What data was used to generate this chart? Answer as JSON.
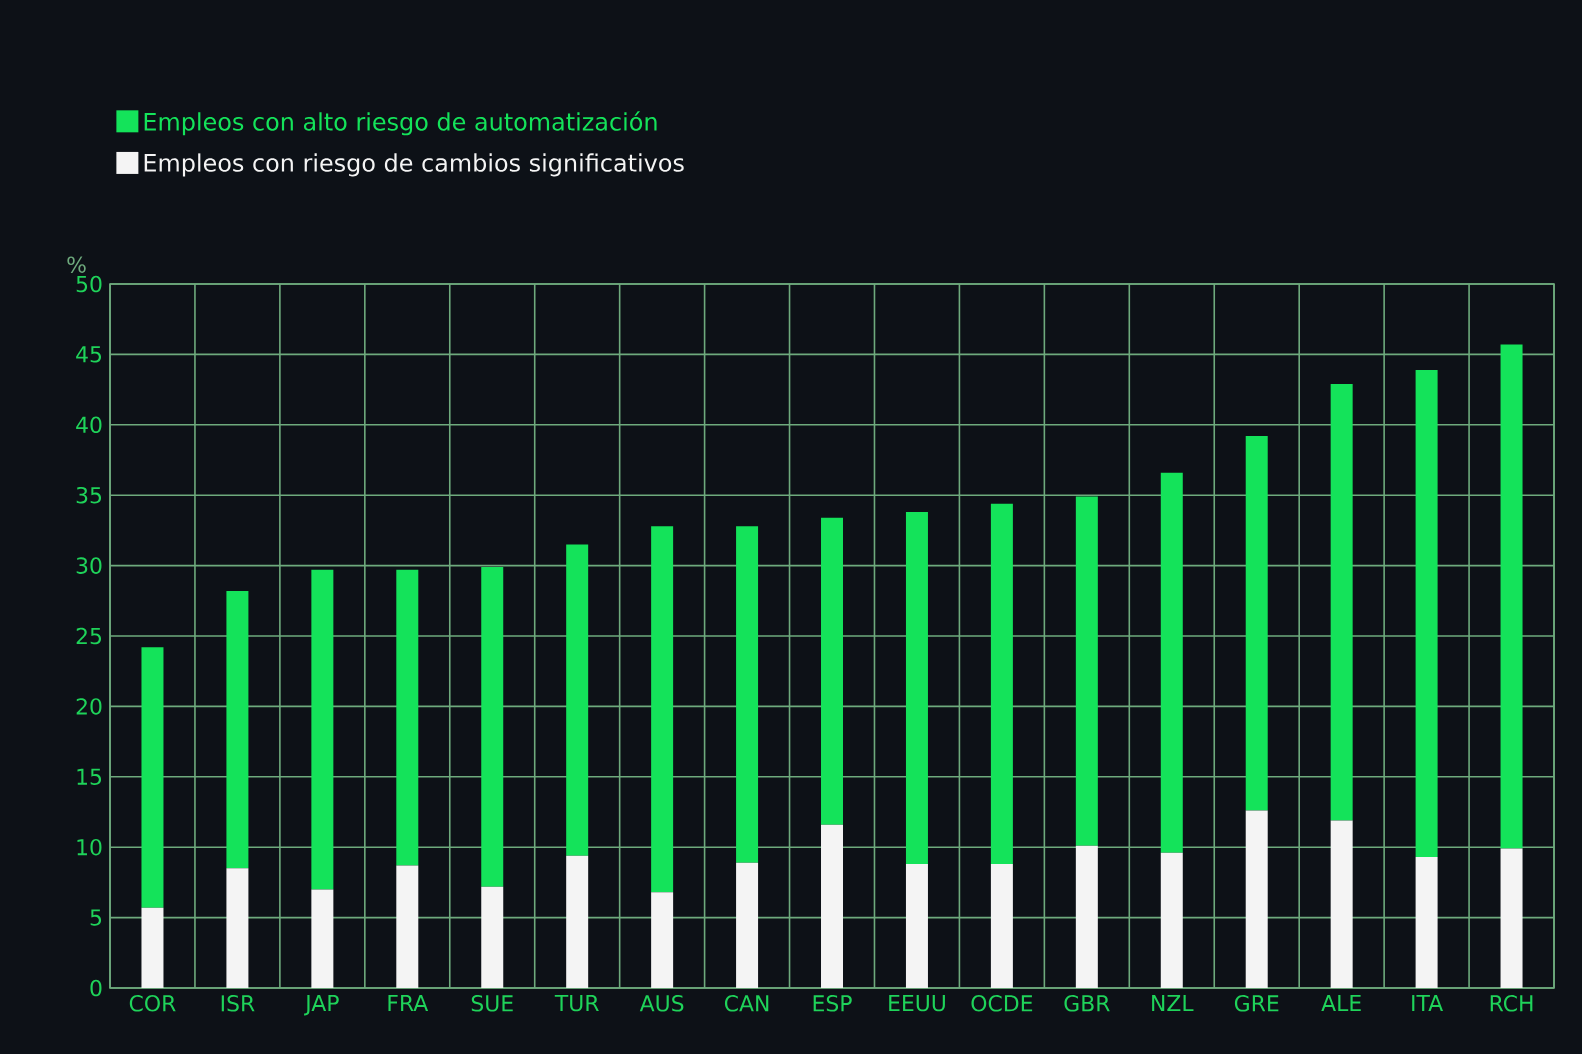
{
  "chart_data": {
    "type": "bar",
    "stacked": true,
    "ylabel": "%",
    "categories": [
      "COR",
      "ISR",
      "JAP",
      "FRA",
      "SUE",
      "TUR",
      "AUS",
      "CAN",
      "ESP",
      "EEUU",
      "OCDE",
      "GBR",
      "NZL",
      "GRE",
      "ALE",
      "ITA",
      "RCH"
    ],
    "series": [
      {
        "name": "Empleos con riesgo de cambios significativos",
        "color": "#f4f4f4",
        "values": [
          5.7,
          8.5,
          7.0,
          8.7,
          7.2,
          9.4,
          6.8,
          8.9,
          11.6,
          8.8,
          8.8,
          10.1,
          9.6,
          12.6,
          11.9,
          9.3,
          9.9
        ]
      },
      {
        "name": "Empleos con alto riesgo de automatización",
        "color": "#14e35a",
        "values": [
          18.5,
          19.7,
          22.7,
          21.0,
          22.7,
          22.1,
          26.0,
          23.9,
          21.8,
          25.0,
          25.6,
          24.8,
          27.0,
          26.6,
          31.0,
          34.6,
          35.8
        ]
      }
    ],
    "ylim": [
      0,
      50
    ],
    "yticks": [
      0,
      5,
      10,
      15,
      20,
      25,
      30,
      35,
      40,
      45,
      50
    ],
    "grid": true,
    "legend": "top left"
  }
}
